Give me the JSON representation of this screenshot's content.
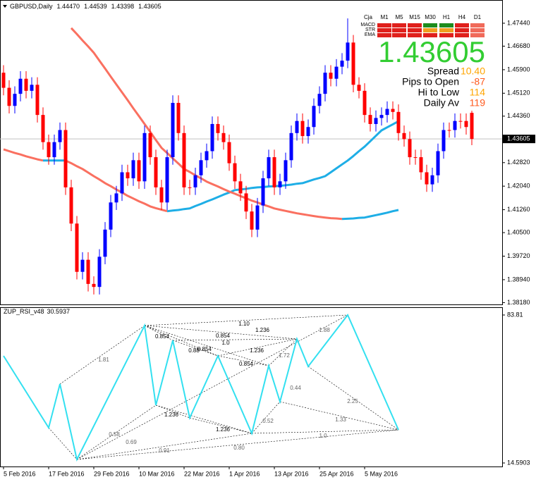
{
  "chart_data": [
    {
      "type": "candlestick",
      "title": "GBPUSD,Daily",
      "header_values": [
        1.4447,
        1.44539,
        1.43398,
        1.43605
      ],
      "header_value_labels": [
        "1.44470",
        "1.44539",
        "1.43398",
        "1.43605"
      ],
      "last_price": 1.43605,
      "up_color": "#0000ff",
      "down_color": "#ff0000",
      "xlim": [
        -0.625,
        88.375
      ],
      "ylim": [
        1.3812,
        1.4821
      ],
      "xticks": [
        {
          "value": 0,
          "label": "5 Feb 2016"
        },
        {
          "value": 8,
          "label": "17 Feb 2016"
        },
        {
          "value": 16,
          "label": "29 Feb 2016"
        },
        {
          "value": 24,
          "label": "10 Mar 2016"
        },
        {
          "value": 32,
          "label": "22 Mar 2016"
        },
        {
          "value": 40,
          "label": "1 Apr 2016"
        },
        {
          "value": 48,
          "label": "13 Apr 2016"
        },
        {
          "value": 56,
          "label": "25 Apr 2016"
        },
        {
          "value": 64,
          "label": "5 May 2016"
        }
      ],
      "yticks": [
        {
          "value": 1.4744,
          "label": "1.47440"
        },
        {
          "value": 1.4668,
          "label": "1.46680"
        },
        {
          "value": 1.459,
          "label": "1.45900"
        },
        {
          "value": 1.4512,
          "label": "1.45120"
        },
        {
          "value": 1.4436,
          "label": "1.44360"
        },
        {
          "value": 1.4282,
          "label": "1.42820"
        },
        {
          "value": 1.4204,
          "label": "1.42040"
        },
        {
          "value": 1.4126,
          "label": "1.41260"
        },
        {
          "value": 1.405,
          "label": "1.40500"
        },
        {
          "value": 1.3972,
          "label": "1.39720"
        },
        {
          "value": 1.3894,
          "label": "1.38940"
        },
        {
          "value": 1.3818,
          "label": "1.38180"
        }
      ],
      "open": [
        1.458,
        1.453,
        1.447,
        1.451,
        1.456,
        1.452,
        1.454,
        1.444,
        1.435,
        1.43,
        1.435,
        1.439,
        1.42,
        1.408,
        1.392,
        1.396,
        1.388,
        1.387,
        1.397,
        1.406,
        1.415,
        1.418,
        1.425,
        1.423,
        1.429,
        1.422,
        1.438,
        1.43,
        1.42,
        1.415,
        1.43,
        1.448,
        1.438,
        1.42,
        1.42,
        1.424,
        1.429,
        1.432,
        1.441,
        1.438,
        1.435,
        1.428,
        1.422,
        1.418,
        1.412,
        1.406,
        1.414,
        1.423,
        1.43,
        1.42,
        1.422,
        1.429,
        1.438,
        1.442,
        1.437,
        1.44,
        1.447,
        1.451,
        1.458,
        1.456,
        1.46,
        1.462,
        1.468,
        1.454,
        1.452,
        1.444,
        1.441,
        1.443,
        1.444,
        1.446,
        1.445,
        1.438,
        1.436,
        1.43,
        1.43,
        1.425,
        1.421,
        1.424,
        1.432,
        1.439,
        1.439,
        1.442,
        1.442,
        1.4447
      ],
      "high": [
        1.4605,
        1.4555,
        1.4535,
        1.4585,
        1.4585,
        1.4565,
        1.4565,
        1.4465,
        1.4375,
        1.4375,
        1.4415,
        1.4415,
        1.4225,
        1.4105,
        1.3985,
        1.3985,
        1.3905,
        1.3995,
        1.4085,
        1.4175,
        1.4205,
        1.4275,
        1.4275,
        1.4315,
        1.4315,
        1.4405,
        1.4405,
        1.4325,
        1.4225,
        1.4325,
        1.4505,
        1.4505,
        1.4405,
        1.4225,
        1.4265,
        1.4315,
        1.4345,
        1.4435,
        1.4435,
        1.4405,
        1.4375,
        1.4305,
        1.4245,
        1.4205,
        1.4145,
        1.4165,
        1.4255,
        1.4325,
        1.4325,
        1.4245,
        1.4315,
        1.4405,
        1.4445,
        1.4445,
        1.4425,
        1.4495,
        1.4535,
        1.4605,
        1.4605,
        1.4625,
        1.4645,
        1.476,
        1.4705,
        1.4565,
        1.4545,
        1.4465,
        1.4455,
        1.4465,
        1.4485,
        1.4485,
        1.4475,
        1.4405,
        1.4385,
        1.4325,
        1.4325,
        1.4275,
        1.4265,
        1.4345,
        1.4415,
        1.4415,
        1.4445,
        1.4445,
        1.4445,
        1.44539
      ],
      "low": [
        1.4505,
        1.4445,
        1.4445,
        1.4485,
        1.4495,
        1.4495,
        1.4415,
        1.4325,
        1.4275,
        1.4275,
        1.4325,
        1.4175,
        1.4055,
        1.3895,
        1.3895,
        1.3855,
        1.3845,
        1.3845,
        1.3945,
        1.4035,
        1.4125,
        1.4155,
        1.4205,
        1.4205,
        1.4195,
        1.4195,
        1.4275,
        1.4175,
        1.4125,
        1.4125,
        1.4275,
        1.4355,
        1.4175,
        1.4175,
        1.4175,
        1.4215,
        1.4265,
        1.4295,
        1.4355,
        1.4325,
        1.4255,
        1.4195,
        1.4155,
        1.4095,
        1.4035,
        1.4035,
        1.4115,
        1.4205,
        1.4175,
        1.4175,
        1.4195,
        1.4265,
        1.4355,
        1.4345,
        1.4345,
        1.4375,
        1.4445,
        1.4485,
        1.4535,
        1.4535,
        1.4575,
        1.4595,
        1.4515,
        1.4495,
        1.4415,
        1.4385,
        1.4385,
        1.4405,
        1.4415,
        1.4425,
        1.4355,
        1.4335,
        1.4275,
        1.4275,
        1.4225,
        1.4185,
        1.4185,
        1.4215,
        1.4295,
        1.4365,
        1.4365,
        1.4395,
        1.4375,
        1.43398
      ],
      "close": [
        1.453,
        1.447,
        1.451,
        1.456,
        1.452,
        1.454,
        1.444,
        1.435,
        1.43,
        1.435,
        1.439,
        1.42,
        1.408,
        1.392,
        1.396,
        1.388,
        1.387,
        1.397,
        1.406,
        1.415,
        1.418,
        1.425,
        1.423,
        1.429,
        1.422,
        1.438,
        1.43,
        1.42,
        1.415,
        1.43,
        1.448,
        1.438,
        1.42,
        1.42,
        1.424,
        1.429,
        1.432,
        1.441,
        1.438,
        1.435,
        1.428,
        1.422,
        1.418,
        1.412,
        1.406,
        1.414,
        1.423,
        1.43,
        1.42,
        1.422,
        1.429,
        1.438,
        1.442,
        1.437,
        1.44,
        1.447,
        1.451,
        1.458,
        1.456,
        1.46,
        1.462,
        1.468,
        1.454,
        1.452,
        1.444,
        1.441,
        1.443,
        1.444,
        1.446,
        1.445,
        1.438,
        1.436,
        1.43,
        1.43,
        1.425,
        1.421,
        1.424,
        1.432,
        1.439,
        1.439,
        1.442,
        1.442,
        1.44,
        1.43605
      ],
      "series": [
        {
          "color": "#fa7060",
          "values": [
            1.4326,
            1.432,
            1.4314,
            1.4309,
            1.4303,
            1.4298,
            1.4293,
            1.4289,
            null,
            null,
            null,
            1.4289,
            1.428,
            1.427,
            1.4261,
            1.4249,
            1.4237,
            1.4226,
            1.4214,
            1.4204,
            1.4193,
            1.4183,
            1.4172,
            1.4163,
            1.4154,
            1.4146,
            1.4137,
            1.4131,
            1.4126,
            1.4121,
            null,
            null,
            null,
            null,
            null,
            null,
            null,
            null,
            null,
            null,
            null,
            null,
            null,
            null,
            null,
            null,
            null,
            null,
            null,
            null,
            null,
            null,
            null,
            null,
            null,
            null,
            null,
            null,
            null,
            null,
            null,
            null,
            null,
            null,
            null,
            null,
            null,
            null,
            null,
            null,
            null,
            null,
            null,
            null,
            null,
            null,
            null,
            null,
            null,
            null,
            null,
            null,
            null,
            null
          ]
        },
        {
          "color": "#1eaee6",
          "values": [
            null,
            null,
            null,
            null,
            null,
            null,
            null,
            1.4289,
            1.4289,
            1.4289,
            1.4289,
            1.4289,
            null,
            null,
            null,
            null,
            null,
            null,
            null,
            null,
            null,
            null,
            null,
            null,
            null,
            null,
            null,
            null,
            null,
            1.4121,
            1.4123,
            1.4125,
            1.4128,
            1.413,
            1.4138,
            1.4145,
            1.4153,
            1.416,
            1.4168,
            1.4176,
            1.4183,
            1.4191,
            1.4193,
            1.4195,
            1.4198,
            1.42,
            1.4201,
            1.4203,
            1.4204,
            1.4205,
            1.4207,
            1.4209,
            1.4212,
            1.4214,
            1.422,
            1.4226,
            1.4231,
            1.4237,
            1.425,
            1.4263,
            1.4276,
            1.4289,
            1.4304,
            1.432,
            1.4335,
            1.4353,
            1.4371,
            1.4389,
            1.4399,
            1.4409,
            1.4419,
            null,
            null,
            null,
            null,
            null,
            null,
            null,
            null,
            null,
            null,
            null,
            null,
            null
          ]
        },
        {
          "color": "#fa7060",
          "values": [
            null,
            null,
            null,
            null,
            null,
            null,
            null,
            null,
            null,
            null,
            null,
            null,
            1.4728,
            1.4708,
            1.4687,
            1.4667,
            1.4646,
            1.462,
            1.4594,
            1.4567,
            1.4541,
            1.4515,
            1.4489,
            1.4462,
            1.4436,
            1.441,
            1.4384,
            1.4357,
            1.4331,
            1.4314,
            1.4296,
            1.4279,
            1.4261,
            1.4251,
            1.424,
            1.423,
            1.4219,
            1.4211,
            1.4203,
            1.4194,
            1.4186,
            1.4179,
            1.4171,
            1.4164,
            1.4156,
            1.415,
            1.4143,
            1.4137,
            1.413,
            1.4126,
            1.4122,
            1.4118,
            1.4114,
            1.4111,
            1.4108,
            1.4105,
            1.4102,
            1.41,
            1.4098,
            1.4097,
            1.4095,
            null,
            null,
            null,
            null,
            null,
            null,
            null,
            null,
            null,
            null,
            null,
            null,
            null,
            null,
            null,
            null,
            null,
            null,
            null,
            null,
            null,
            null,
            null
          ]
        },
        {
          "color": "#1eaee6",
          "values": [
            null,
            null,
            null,
            null,
            null,
            null,
            null,
            null,
            null,
            null,
            null,
            null,
            null,
            null,
            null,
            null,
            null,
            null,
            null,
            null,
            null,
            null,
            null,
            null,
            null,
            null,
            null,
            null,
            null,
            null,
            null,
            null,
            null,
            null,
            null,
            null,
            null,
            null,
            null,
            null,
            null,
            null,
            null,
            null,
            null,
            null,
            null,
            null,
            null,
            null,
            null,
            null,
            null,
            null,
            null,
            null,
            null,
            null,
            null,
            null,
            1.4095,
            1.4096,
            1.4097,
            1.4099,
            1.41,
            1.4104,
            1.4108,
            1.4112,
            1.4116,
            1.4121,
            1.4125,
            null,
            null,
            null,
            null,
            null,
            null,
            null,
            null,
            null,
            null,
            null,
            null,
            null
          ]
        }
      ]
    },
    {
      "type": "line",
      "title": "ZUP_RSI_v48",
      "title_value": 30.5937,
      "xlim": [
        -0.625,
        88.375
      ],
      "ylim": [
        12.942,
        87.436
      ],
      "yticks": [
        14.5903,
        83.81
      ],
      "color": "#33e0f0",
      "x": [
        0,
        8,
        10,
        13,
        25,
        27,
        30,
        33,
        38,
        44,
        47,
        49,
        52,
        54,
        61,
        70
      ],
      "values": [
        64.69,
        31.07,
        51.51,
        16.24,
        78.87,
        41.62,
        71.94,
        35.69,
        64.69,
        28.44,
        60.08,
        43.27,
        72.6,
        59.75,
        83.81,
        30.08
      ],
      "annotations": [
        "1.81",
        "0.58",
        "0.69",
        "0.91",
        "1.236",
        "1.236",
        "0.80",
        "0.52",
        "1.0",
        "1.33",
        "2.25",
        "0.44",
        "1.72",
        "1.88",
        "1.10",
        "1.236",
        "0.854",
        "0.854",
        "1.0",
        "1.236",
        "0.854",
        "0.854",
        "0.88"
      ]
    }
  ],
  "info_panel": {
    "corner_label": "Cja",
    "timeframes": [
      "M1",
      "M5",
      "M15",
      "M30",
      "H1",
      "H4",
      "D1"
    ],
    "rows": [
      {
        "name": "MACD",
        "colors": [
          "#e0201c",
          "#e0201c",
          "#e0201c",
          "#1e8c1e",
          "#1e8c1e",
          "#e0201c",
          "#f06a5a"
        ]
      },
      {
        "name": "STR",
        "colors": [
          "#e0201c",
          "#e0201c",
          "#e0201c",
          "#f0a020",
          "#f0a020",
          "#e0201c",
          "#f06a5a"
        ]
      },
      {
        "name": "EMA",
        "colors": [
          "#e0201c",
          "#e0201c",
          "#e0201c",
          "#e0201c",
          "#e0201c",
          "#e0201c",
          "#f06a5a"
        ]
      }
    ],
    "price": 1.43605,
    "price_color": "#32cd32",
    "stats": [
      {
        "label": "Spread",
        "value": 10.4,
        "value_label": "10.40",
        "color": "#ffa500"
      },
      {
        "label": "Pips to Open",
        "value": -87,
        "color": "#ff5a1e"
      },
      {
        "label": "Hi to Low",
        "value": 114,
        "color": "#ffa500"
      },
      {
        "label": "Daily Av",
        "value": 119,
        "color": "#ff5a1e"
      }
    ]
  }
}
